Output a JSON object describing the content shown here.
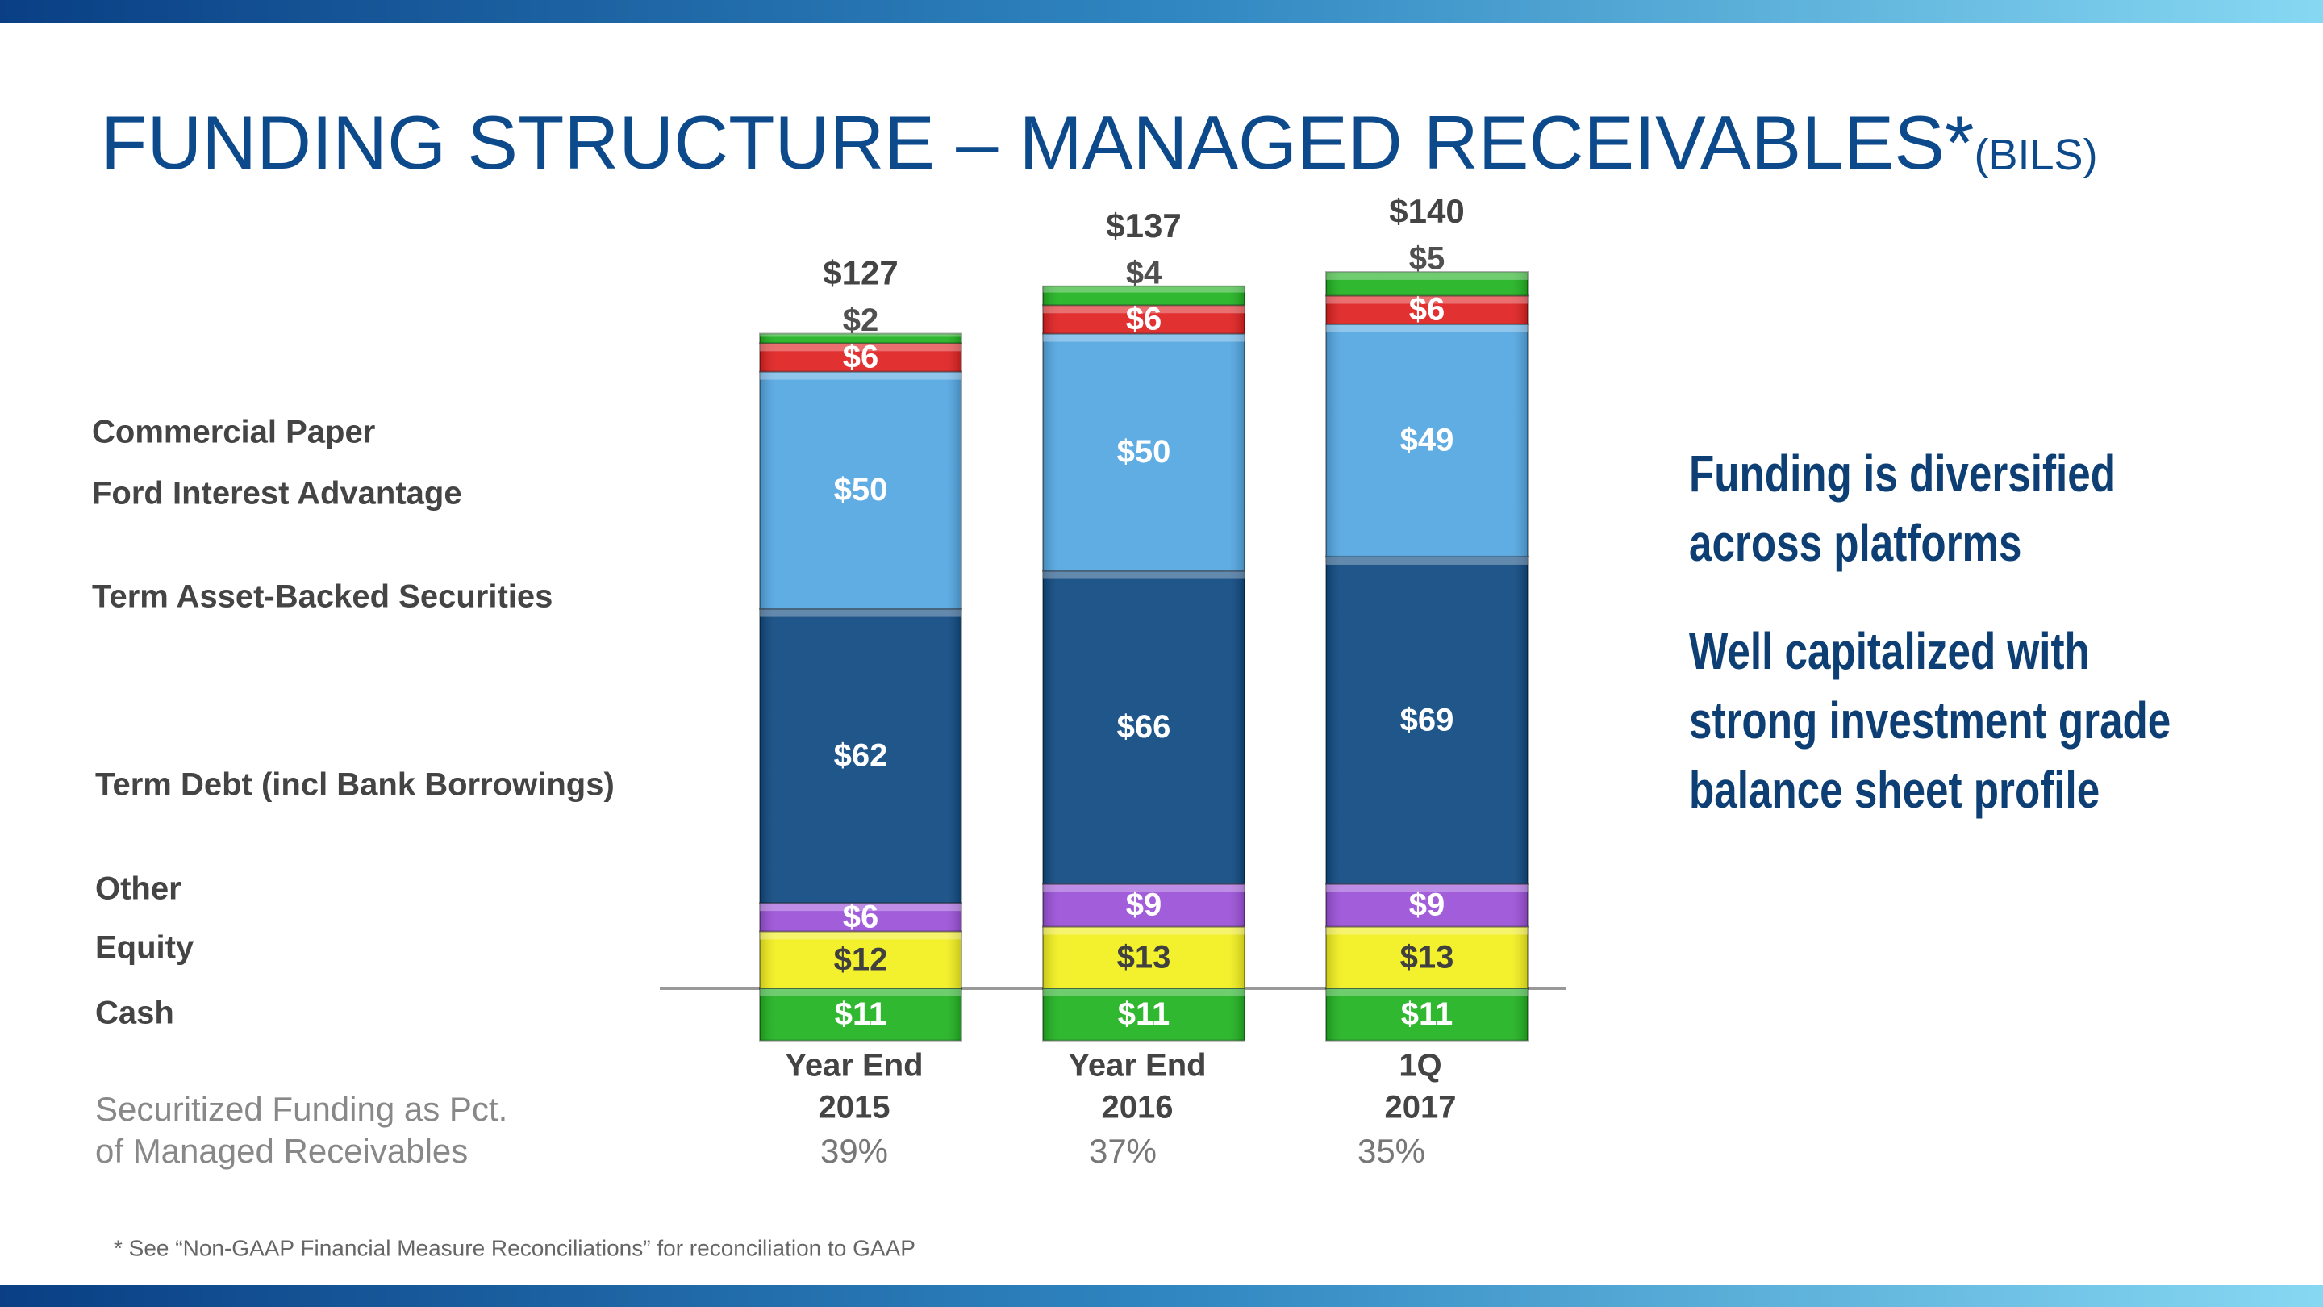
{
  "chart_data": {
    "type": "stacked_bar",
    "title": "FUNDING STRUCTURE – MANAGED RECEIVABLES*",
    "title_unit": "(BILS)",
    "categories": [
      [
        "Year End",
        "2015"
      ],
      [
        "Year End",
        "2016"
      ],
      [
        "1Q",
        "2017"
      ]
    ],
    "series": [
      {
        "name": "Cash",
        "color": "#1fb21f",
        "label_color": "#ffffff",
        "values": [
          11,
          11,
          11
        ],
        "value_labels": [
          "$11",
          "$11",
          "$11"
        ]
      },
      {
        "name": "Equity",
        "color": "#f2ef1c",
        "label_color": "#404040",
        "values": [
          12,
          13,
          13
        ],
        "value_labels": [
          "$12",
          "$13",
          "$13"
        ]
      },
      {
        "name": "Other",
        "color": "#9a4fd8",
        "label_color": "#ffffff",
        "values": [
          6,
          9,
          9
        ],
        "value_labels": [
          "$6",
          "$9",
          "$9"
        ]
      },
      {
        "name": "Term Debt (incl Bank Borrowings)",
        "color": "#0d4880",
        "label_color": "#ffffff",
        "values": [
          62,
          66,
          69
        ],
        "value_labels": [
          "$62",
          "$66",
          "$69"
        ]
      },
      {
        "name": "Term Asset-Backed Securities",
        "color": "#52a6e2",
        "label_color": "#ffffff",
        "values": [
          50,
          50,
          49
        ],
        "value_labels": [
          "$50",
          "$50",
          "$49"
        ]
      },
      {
        "name": "Ford Interest Advantage",
        "color": "#df1f1f",
        "label_color": "#ffffff",
        "values": [
          6,
          6,
          6
        ],
        "value_labels": [
          "$6",
          "$6",
          "$6"
        ]
      },
      {
        "name": "Commercial Paper",
        "color": "#1fb21f",
        "label_color": "#505050",
        "values": [
          2,
          4,
          5
        ],
        "value_labels": [
          "$2",
          "$4",
          "$5"
        ]
      }
    ],
    "totals": {
      "values": [
        127,
        137,
        140
      ],
      "value_labels": [
        "$127",
        "$137",
        "$140"
      ]
    },
    "securitized": {
      "label": [
        "Securitized Funding as Pct.",
        "of Managed Receivables"
      ],
      "values": [
        39,
        37,
        35
      ],
      "value_labels": [
        "39%",
        "37%",
        "35%"
      ]
    },
    "side_text": [
      [
        "Funding is diversified",
        "across platforms"
      ],
      [
        "Well capitalized with",
        "strong investment grade",
        "balance sheet profile"
      ]
    ],
    "footnote": "* See “Non-GAAP Financial Measure Reconciliations” for  reconciliation to GAAP"
  }
}
